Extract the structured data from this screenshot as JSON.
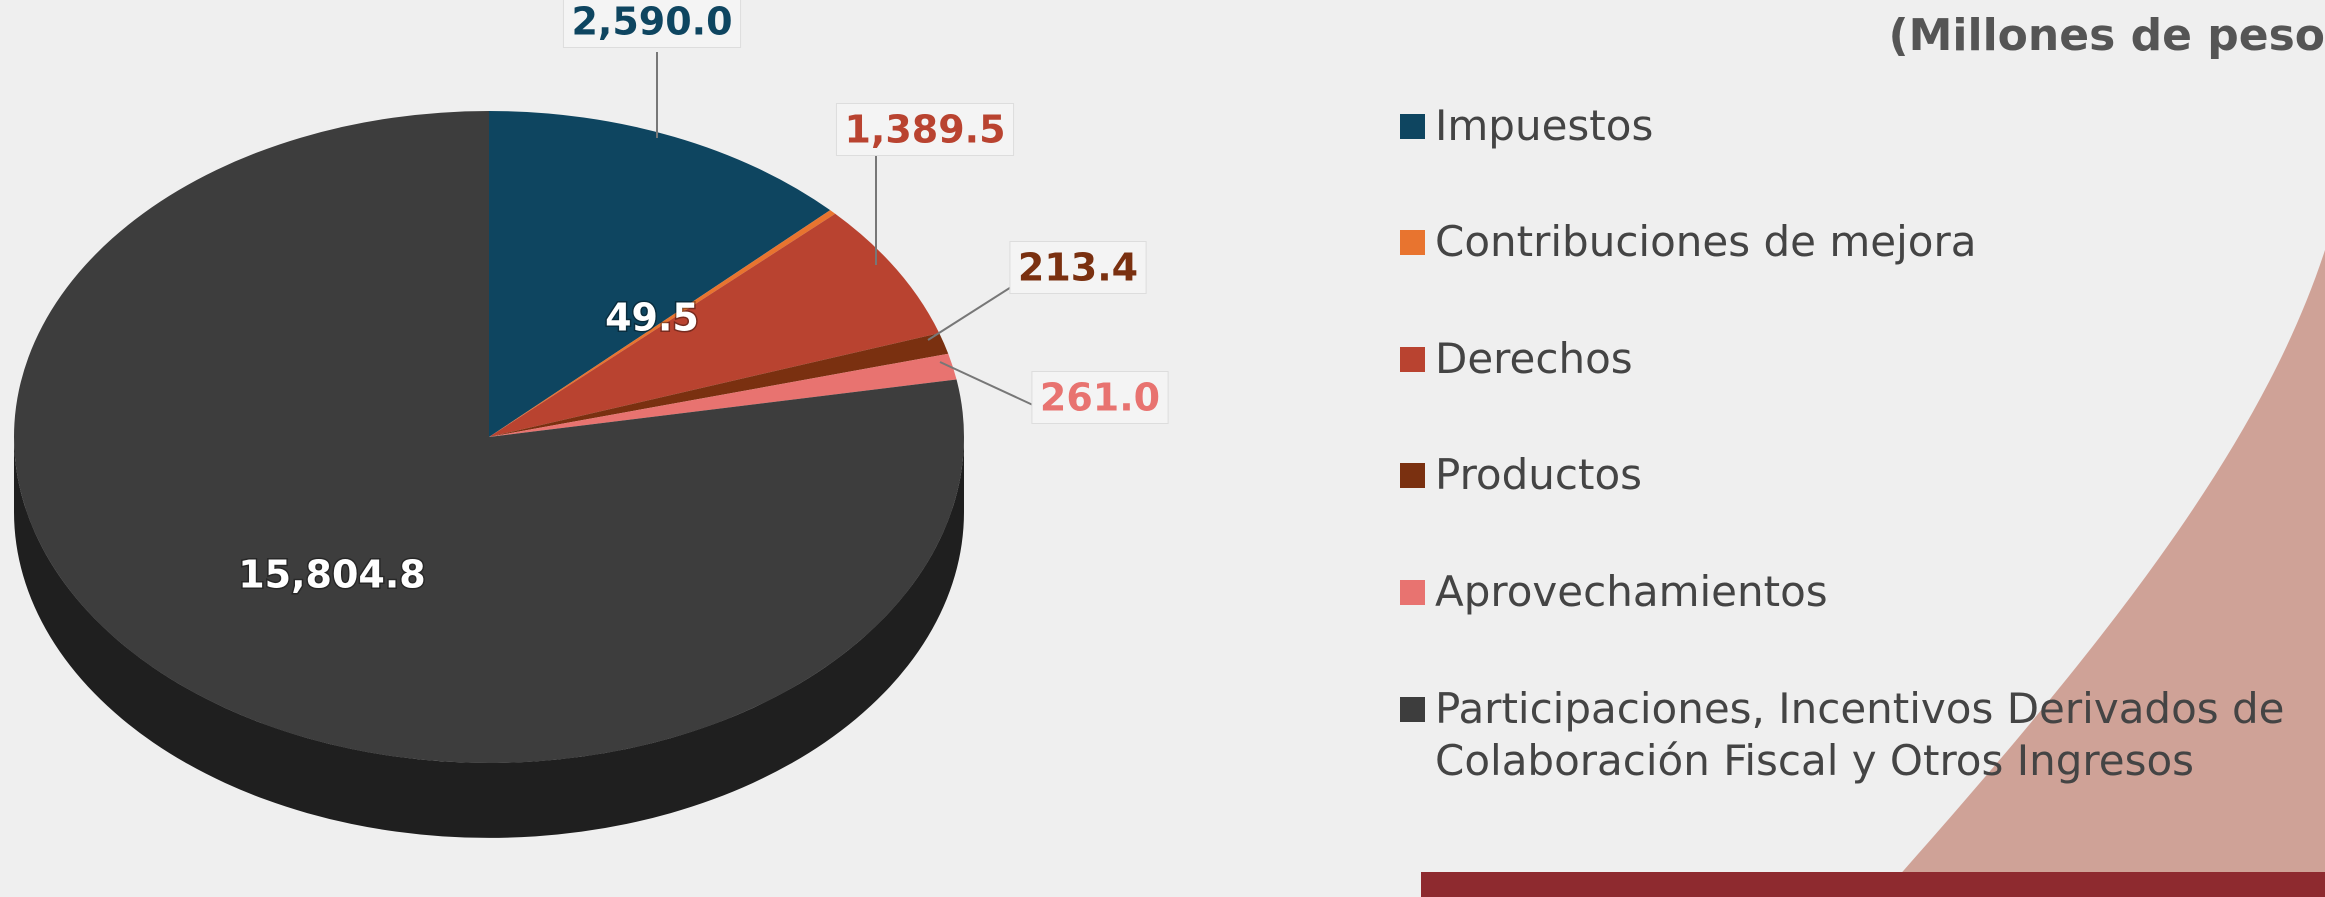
{
  "chart_data": {
    "type": "pie",
    "title": "(Millones de peso",
    "categories": [
      "Impuestos",
      "Contribuciones de mejora",
      "Derechos",
      "Productos",
      "Aprovechamientos",
      "Participaciones, Incentivos Derivados de Colaboración Fiscal y Otros Ingresos"
    ],
    "values": [
      2590.0,
      49.5,
      1389.5,
      213.4,
      261.0,
      15804.8
    ],
    "value_labels": [
      "2,590.0",
      "49.5",
      "1,389.5",
      "213.4",
      "261.0",
      "15,804.8"
    ],
    "colors": [
      "#0e4560",
      "#e8742f",
      "#b94330",
      "#7a3010",
      "#e87370",
      "#3d3d3d"
    ]
  }
}
